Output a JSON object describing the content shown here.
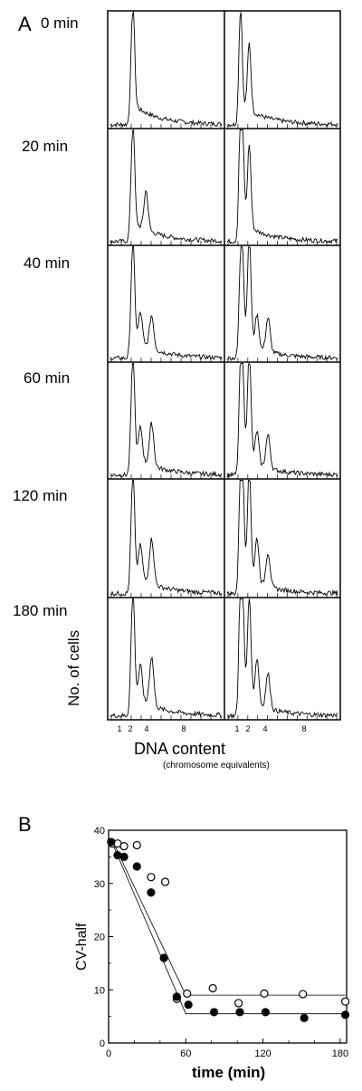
{
  "panel_a": {
    "letter": "A",
    "time_labels": [
      "0 min",
      "20 min",
      "40 min",
      "60 min",
      "120 min",
      "180 min"
    ],
    "ylabel": "No. of cells",
    "xlabel": "DNA content",
    "xlabel_sub": "(chromosome equivalents)",
    "tick_labels_left": [
      "1",
      "2",
      "4",
      "8"
    ],
    "tick_labels_right": [
      "1",
      "2",
      "4",
      "8"
    ]
  },
  "panel_b": {
    "letter": "B",
    "ylabel": "CV-half",
    "xlabel": "time (min)"
  },
  "chart_data": [
    {
      "type": "line",
      "title": "",
      "description_panels": "A: DNA content histograms at 0, 20, 40, 60, 120, 180 min (two columns)",
      "series": [
        {
          "time": "0 min",
          "left_peaks": [
            [
              2,
              1.0
            ]
          ],
          "right_peaks": [
            [
              1,
              1.0
            ],
            [
              2,
              0.6
            ]
          ]
        },
        {
          "time": "20 min",
          "left_peaks": [
            [
              2,
              1.0
            ],
            [
              3.5,
              0.35
            ]
          ],
          "right_peaks": [
            [
              1,
              1.0
            ],
            [
              1.5,
              0.65
            ],
            [
              2,
              0.75
            ]
          ]
        },
        {
          "time": "40 min",
          "left_peaks": [
            [
              2,
              1.0
            ],
            [
              3,
              0.28
            ],
            [
              4,
              0.3
            ]
          ],
          "right_peaks": [
            [
              1,
              0.7
            ],
            [
              1.5,
              0.6
            ],
            [
              2,
              1.0
            ],
            [
              3,
              0.3
            ],
            [
              4,
              0.3
            ]
          ]
        },
        {
          "time": "60 min",
          "left_peaks": [
            [
              2,
              1.0
            ],
            [
              3,
              0.3
            ],
            [
              4,
              0.38
            ]
          ],
          "right_peaks": [
            [
              1,
              0.8
            ],
            [
              1.5,
              0.7
            ],
            [
              2,
              1.0
            ],
            [
              3,
              0.3
            ],
            [
              4,
              0.3
            ]
          ]
        },
        {
          "time": "120 min",
          "left_peaks": [
            [
              2,
              1.0
            ],
            [
              3,
              0.3
            ],
            [
              4,
              0.4
            ]
          ],
          "right_peaks": [
            [
              1,
              0.9
            ],
            [
              1.5,
              0.8
            ],
            [
              2,
              1.0
            ],
            [
              3,
              0.4
            ],
            [
              4,
              0.3
            ]
          ]
        },
        {
          "time": "180 min",
          "left_peaks": [
            [
              2,
              1.0
            ],
            [
              3,
              0.3
            ],
            [
              4,
              0.42
            ]
          ],
          "right_peaks": [
            [
              1,
              1.0
            ],
            [
              1.5,
              0.75
            ],
            [
              2,
              0.9
            ],
            [
              3,
              0.4
            ],
            [
              4,
              0.3
            ]
          ]
        }
      ]
    },
    {
      "type": "scatter",
      "title": "",
      "xlabel": "time (min)",
      "ylabel": "CV-half",
      "xlim": [
        0,
        185
      ],
      "ylim": [
        0,
        40
      ],
      "xticks": [
        0,
        60,
        120,
        180
      ],
      "yticks": [
        0,
        10,
        20,
        30,
        40
      ],
      "series": [
        {
          "marker": "open",
          "x": [
            3,
            7,
            12,
            22,
            33,
            44,
            53,
            61,
            81,
            101,
            121,
            151,
            184
          ],
          "y": [
            37.5,
            37.5,
            37,
            37.2,
            31.2,
            30.3,
            8.3,
            9.3,
            10.3,
            7.5,
            9.3,
            9.2,
            7.8
          ]
        },
        {
          "marker": "filled",
          "x": [
            2,
            7,
            12,
            22,
            33,
            43,
            53,
            62,
            82,
            102,
            122,
            152,
            184
          ],
          "y": [
            37.8,
            35.3,
            35,
            33.2,
            28.3,
            16,
            8.7,
            7.2,
            5.8,
            5.8,
            5.8,
            4.7,
            5.3
          ]
        }
      ],
      "fit_lines": [
        {
          "x": [
            3,
            60,
            184
          ],
          "y": [
            38,
            9,
            9
          ]
        },
        {
          "x": [
            3,
            60,
            184
          ],
          "y": [
            37.5,
            5.5,
            5.5
          ]
        }
      ]
    }
  ]
}
